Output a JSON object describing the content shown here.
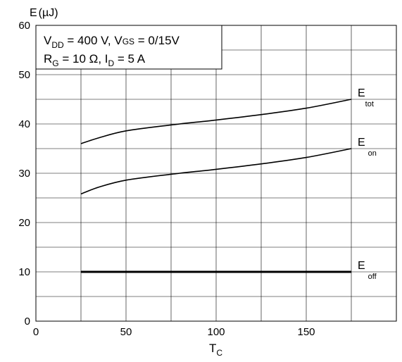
{
  "chart_data": {
    "type": "line",
    "ylabel": {
      "main": "E",
      "unit": "(µJ)"
    },
    "xlabel": {
      "main": "T",
      "sub": "C"
    },
    "xlim": [
      0,
      200
    ],
    "ylim": [
      0,
      60
    ],
    "xticks": [
      0,
      50,
      100,
      150
    ],
    "yticks": [
      0,
      10,
      20,
      30,
      40,
      50,
      60
    ],
    "xtick_labels": [
      "0",
      "50",
      "100",
      "150"
    ],
    "ytick_labels": [
      "0",
      "10",
      "20",
      "30",
      "40",
      "50",
      "60"
    ],
    "grid": true,
    "conditions": {
      "line1": {
        "a": "V",
        "a_sub": "DD",
        "b": " = 400 V, V",
        "b_sub": "GS",
        "c": " = 0/15V"
      },
      "line2": {
        "a": "R",
        "a_sub": "G",
        "b": " = 10 Ω, I",
        "b_sub": "D",
        "c": " = 5 A"
      }
    },
    "series": [
      {
        "label_main": "E",
        "label_sub": "tot",
        "x": [
          25,
          35,
          50,
          75,
          100,
          125,
          150,
          175
        ],
        "y": [
          36.0,
          37.2,
          38.6,
          39.8,
          40.8,
          41.9,
          43.2,
          45.0
        ],
        "stroke": 1.6
      },
      {
        "label_main": "E",
        "label_sub": "on",
        "x": [
          25,
          35,
          50,
          75,
          100,
          125,
          150,
          175
        ],
        "y": [
          25.8,
          27.2,
          28.6,
          29.8,
          30.8,
          31.9,
          33.2,
          35.0
        ],
        "stroke": 1.6
      },
      {
        "label_main": "E",
        "label_sub": "off",
        "x": [
          25,
          175
        ],
        "y": [
          10.0,
          10.0
        ],
        "stroke": 3
      }
    ]
  }
}
